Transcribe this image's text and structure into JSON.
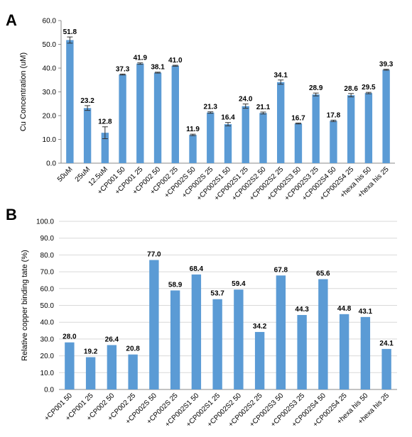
{
  "chart_data": [
    {
      "panel": "A",
      "type": "bar",
      "ylabel": "Cu Concentration (uM)",
      "ylim": [
        0,
        60
      ],
      "yticks": [
        "0.0",
        "10.0",
        "20.0",
        "30.0",
        "40.0",
        "50.0",
        "60.0"
      ],
      "grid": false,
      "bar_color": "#5b9bd5",
      "error_bars": true,
      "categories": [
        "50uM",
        "25uM",
        "12.5uM",
        "+CP001 50",
        "+CP001 25",
        "+CP002 50",
        "+CP002 25",
        "+CP002S 50",
        "+CP002S 25",
        "+CP002S1 50",
        "+CP002S1 25",
        "+CP002S2 50",
        "+CP002S2 25",
        "+CP002S3 50",
        "+CP002S3 25",
        "+CP002S4 50",
        "+CP002S4 25",
        "+hexa his 50",
        "+hexa his 25"
      ],
      "values": [
        51.8,
        23.2,
        12.8,
        37.3,
        41.9,
        38.1,
        41.0,
        11.9,
        21.3,
        16.4,
        24.0,
        21.1,
        34.1,
        16.7,
        28.9,
        17.8,
        28.6,
        29.5,
        39.3
      ],
      "labels": [
        "51.8",
        "23.2",
        "12.8",
        "37.3",
        "41.9",
        "38.1",
        "41.0",
        "11.9",
        "21.3",
        "16.4",
        "24.0",
        "21.1",
        "34.1",
        "16.7",
        "28.9",
        "17.8",
        "28.6",
        "29.5",
        "39.3"
      ],
      "errors": [
        1.3,
        1.0,
        2.5,
        0.2,
        0.3,
        0.2,
        0.2,
        0.3,
        0.3,
        0.7,
        0.9,
        0.4,
        0.9,
        0.2,
        0.6,
        0.3,
        0.7,
        0.3,
        0.2
      ]
    },
    {
      "panel": "B",
      "type": "bar",
      "ylabel": "Relative copper binding tate (%)",
      "ylim": [
        0,
        100
      ],
      "yticks": [
        "0.0",
        "10.0",
        "20.0",
        "30.0",
        "40.0",
        "50.0",
        "60.0",
        "70.0",
        "80.0",
        "90.0",
        "100.0"
      ],
      "grid": true,
      "bar_color": "#5b9bd5",
      "error_bars": false,
      "categories": [
        "+CP001 50",
        "+CP001 25",
        "+CP002 50",
        "+CP002 25",
        "+CP002S 50",
        "+CP002S 25",
        "+CP002S1 50",
        "+CP002S1 25",
        "+CP002S2 50",
        "+CP002S2 25",
        "+CP002S3 50",
        "+CP002S3 25",
        "+CP002S4 50",
        "+CP002S4 25",
        "+hexa his 50",
        "+hexa his 25"
      ],
      "values": [
        28.0,
        19.2,
        26.4,
        20.8,
        77.0,
        58.9,
        68.4,
        53.7,
        59.4,
        34.2,
        67.8,
        44.3,
        65.6,
        44.8,
        43.1,
        24.1
      ],
      "labels": [
        "28.0",
        "19.2",
        "26.4",
        "20.8",
        "77.0",
        "58.9",
        "68.4",
        "53.7",
        "59.4",
        "34.2",
        "67.8",
        "44.3",
        "65.6",
        "44.8",
        "43.1",
        "24.1"
      ]
    }
  ]
}
